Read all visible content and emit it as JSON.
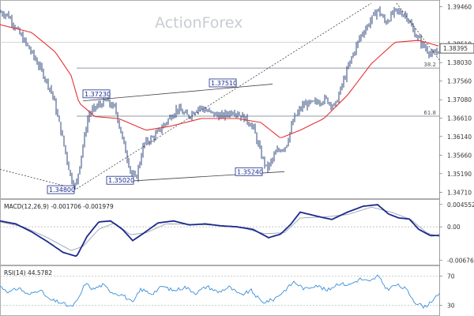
{
  "watermark": "ActionForex",
  "chart_data": [
    {
      "type": "candlestick",
      "panel": "price",
      "y_ticks": [
        "1.39460",
        "1.38510",
        "1.38030",
        "1.37560",
        "1.37080",
        "1.36610",
        "1.36140",
        "1.35660",
        "1.35190",
        "1.34710"
      ],
      "ylim": [
        1.3462,
        1.3955
      ],
      "current_price": "1.38395",
      "ma_line_color": "#e83030",
      "series_anchors": [
        {
          "x": 0,
          "p": 1.3932
        },
        {
          "x": 10,
          "p": 1.3925
        },
        {
          "x": 22,
          "p": 1.3885
        },
        {
          "x": 38,
          "p": 1.3835
        },
        {
          "x": 52,
          "p": 1.3785
        },
        {
          "x": 66,
          "p": 1.3725
        },
        {
          "x": 78,
          "p": 1.362
        },
        {
          "x": 90,
          "p": 1.3505
        },
        {
          "x": 96,
          "p": 1.3485
        },
        {
          "x": 104,
          "p": 1.358
        },
        {
          "x": 112,
          "p": 1.367
        },
        {
          "x": 122,
          "p": 1.369
        },
        {
          "x": 134,
          "p": 1.3705
        },
        {
          "x": 146,
          "p": 1.3685
        },
        {
          "x": 156,
          "p": 1.36
        },
        {
          "x": 166,
          "p": 1.352
        },
        {
          "x": 172,
          "p": 1.3505
        },
        {
          "x": 182,
          "p": 1.3595
        },
        {
          "x": 196,
          "p": 1.3615
        },
        {
          "x": 210,
          "p": 1.365
        },
        {
          "x": 224,
          "p": 1.3685
        },
        {
          "x": 238,
          "p": 1.3665
        },
        {
          "x": 252,
          "p": 1.369
        },
        {
          "x": 266,
          "p": 1.3675
        },
        {
          "x": 280,
          "p": 1.3665
        },
        {
          "x": 296,
          "p": 1.368
        },
        {
          "x": 310,
          "p": 1.366
        },
        {
          "x": 320,
          "p": 1.364
        },
        {
          "x": 330,
          "p": 1.357
        },
        {
          "x": 338,
          "p": 1.353
        },
        {
          "x": 350,
          "p": 1.3575
        },
        {
          "x": 362,
          "p": 1.359
        },
        {
          "x": 372,
          "p": 1.366
        },
        {
          "x": 384,
          "p": 1.3695
        },
        {
          "x": 398,
          "p": 1.37
        },
        {
          "x": 412,
          "p": 1.371
        },
        {
          "x": 424,
          "p": 1.369
        },
        {
          "x": 432,
          "p": 1.374
        },
        {
          "x": 444,
          "p": 1.381
        },
        {
          "x": 456,
          "p": 1.387
        },
        {
          "x": 466,
          "p": 1.39
        },
        {
          "x": 478,
          "p": 1.394
        },
        {
          "x": 488,
          "p": 1.3905
        },
        {
          "x": 500,
          "p": 1.3935
        },
        {
          "x": 514,
          "p": 1.3925
        },
        {
          "x": 524,
          "p": 1.388
        },
        {
          "x": 536,
          "p": 1.3845
        },
        {
          "x": 548,
          "p": 1.382
        },
        {
          "x": 556,
          "p": 1.384
        }
      ],
      "ma_anchors": [
        {
          "x": 0,
          "p": 1.39
        },
        {
          "x": 40,
          "p": 1.388
        },
        {
          "x": 70,
          "p": 1.383
        },
        {
          "x": 90,
          "p": 1.377
        },
        {
          "x": 100,
          "p": 1.37
        },
        {
          "x": 120,
          "p": 1.3665
        },
        {
          "x": 150,
          "p": 1.366
        },
        {
          "x": 185,
          "p": 1.363
        },
        {
          "x": 215,
          "p": 1.364
        },
        {
          "x": 255,
          "p": 1.366
        },
        {
          "x": 300,
          "p": 1.366
        },
        {
          "x": 330,
          "p": 1.365
        },
        {
          "x": 355,
          "p": 1.361
        },
        {
          "x": 380,
          "p": 1.363
        },
        {
          "x": 410,
          "p": 1.366
        },
        {
          "x": 440,
          "p": 1.372
        },
        {
          "x": 470,
          "p": 1.38
        },
        {
          "x": 500,
          "p": 1.3855
        },
        {
          "x": 530,
          "p": 1.386
        },
        {
          "x": 556,
          "p": 1.3845
        }
      ],
      "annotations": [
        {
          "label": "1.34800",
          "x": 60,
          "p": 1.3478
        },
        {
          "label": "1.37230",
          "x": 105,
          "p": 1.3723
        },
        {
          "label": "1.35020",
          "x": 135,
          "p": 1.3502
        },
        {
          "label": "1.37510",
          "x": 265,
          "p": 1.3751
        },
        {
          "label": "1.35240",
          "x": 298,
          "p": 1.3524
        }
      ],
      "fib_levels": [
        {
          "label": "38.2",
          "p": 1.3789
        },
        {
          "label": "61.8",
          "p": 1.3666
        }
      ],
      "trendlines": [
        {
          "x1": 0,
          "p1": 1.353,
          "x2": 97,
          "p2": 1.348,
          "style": "dashed"
        },
        {
          "x1": 97,
          "p1": 1.348,
          "x2": 470,
          "p2": 1.3955,
          "style": "dashed"
        },
        {
          "x1": 502,
          "p1": 1.3955,
          "x2": 556,
          "p2": 1.381,
          "style": "dashed"
        },
        {
          "x1": 105,
          "p1": 1.3705,
          "x2": 345,
          "p2": 1.3748,
          "style": "solid"
        },
        {
          "x1": 140,
          "p1": 1.3497,
          "x2": 360,
          "p2": 1.3524,
          "style": "solid"
        }
      ]
    },
    {
      "type": "line",
      "panel": "macd",
      "title": "MACD(12,26,9) -0.001706 -0.001979",
      "y_ticks": [
        "0.004552",
        "0.00",
        "-0.006764"
      ],
      "ylim": [
        -0.0072,
        0.005
      ],
      "macd_anchors": [
        {
          "x": 0,
          "v": 0.0012
        },
        {
          "x": 20,
          "v": 0.0006
        },
        {
          "x": 40,
          "v": -0.001
        },
        {
          "x": 60,
          "v": -0.003
        },
        {
          "x": 80,
          "v": -0.0052
        },
        {
          "x": 97,
          "v": -0.006
        },
        {
          "x": 110,
          "v": -0.002
        },
        {
          "x": 125,
          "v": 0.001
        },
        {
          "x": 140,
          "v": 0.0012
        },
        {
          "x": 155,
          "v": -0.0005
        },
        {
          "x": 168,
          "v": -0.0028
        },
        {
          "x": 180,
          "v": -0.0015
        },
        {
          "x": 200,
          "v": 0.0008
        },
        {
          "x": 220,
          "v": 0.0012
        },
        {
          "x": 240,
          "v": 0.0004
        },
        {
          "x": 260,
          "v": 0.0006
        },
        {
          "x": 280,
          "v": 0.0002
        },
        {
          "x": 300,
          "v": 0.0
        },
        {
          "x": 320,
          "v": -0.0005
        },
        {
          "x": 340,
          "v": -0.0022
        },
        {
          "x": 355,
          "v": -0.0015
        },
        {
          "x": 368,
          "v": 0.0005
        },
        {
          "x": 380,
          "v": 0.003
        },
        {
          "x": 400,
          "v": 0.0022
        },
        {
          "x": 420,
          "v": 0.0015
        },
        {
          "x": 440,
          "v": 0.003
        },
        {
          "x": 460,
          "v": 0.0042
        },
        {
          "x": 478,
          "v": 0.0045
        },
        {
          "x": 492,
          "v": 0.0026
        },
        {
          "x": 505,
          "v": 0.0018
        },
        {
          "x": 518,
          "v": 0.0016
        },
        {
          "x": 530,
          "v": -0.0005
        },
        {
          "x": 545,
          "v": -0.0018
        },
        {
          "x": 556,
          "v": -0.0017
        }
      ],
      "signal_anchors": [
        {
          "x": 0,
          "v": 0.001
        },
        {
          "x": 30,
          "v": 0.0
        },
        {
          "x": 60,
          "v": -0.0022
        },
        {
          "x": 90,
          "v": -0.0048
        },
        {
          "x": 105,
          "v": -0.004
        },
        {
          "x": 125,
          "v": -0.0005
        },
        {
          "x": 145,
          "v": 0.0008
        },
        {
          "x": 165,
          "v": -0.0016
        },
        {
          "x": 185,
          "v": -0.0012
        },
        {
          "x": 210,
          "v": 0.0006
        },
        {
          "x": 250,
          "v": 0.0005
        },
        {
          "x": 300,
          "v": 0.0001
        },
        {
          "x": 335,
          "v": -0.0014
        },
        {
          "x": 360,
          "v": -0.0012
        },
        {
          "x": 380,
          "v": 0.0018
        },
        {
          "x": 410,
          "v": 0.002
        },
        {
          "x": 440,
          "v": 0.0025
        },
        {
          "x": 470,
          "v": 0.004
        },
        {
          "x": 495,
          "v": 0.003
        },
        {
          "x": 520,
          "v": 0.0015
        },
        {
          "x": 540,
          "v": -0.0012
        },
        {
          "x": 556,
          "v": -0.002
        }
      ]
    },
    {
      "type": "line",
      "panel": "rsi",
      "title": "RSI(14) 44.5782",
      "y_ticks": [
        "70",
        "30"
      ],
      "ylim": [
        20,
        80
      ],
      "rsi_anchors": [
        {
          "x": 0,
          "v": 56
        },
        {
          "x": 12,
          "v": 48
        },
        {
          "x": 24,
          "v": 54
        },
        {
          "x": 36,
          "v": 44
        },
        {
          "x": 50,
          "v": 52
        },
        {
          "x": 62,
          "v": 38
        },
        {
          "x": 76,
          "v": 34
        },
        {
          "x": 90,
          "v": 28
        },
        {
          "x": 98,
          "v": 36
        },
        {
          "x": 108,
          "v": 60
        },
        {
          "x": 118,
          "v": 52
        },
        {
          "x": 130,
          "v": 58
        },
        {
          "x": 142,
          "v": 48
        },
        {
          "x": 156,
          "v": 44
        },
        {
          "x": 168,
          "v": 33
        },
        {
          "x": 178,
          "v": 52
        },
        {
          "x": 192,
          "v": 46
        },
        {
          "x": 206,
          "v": 56
        },
        {
          "x": 220,
          "v": 50
        },
        {
          "x": 234,
          "v": 55
        },
        {
          "x": 248,
          "v": 47
        },
        {
          "x": 262,
          "v": 56
        },
        {
          "x": 276,
          "v": 48
        },
        {
          "x": 290,
          "v": 55
        },
        {
          "x": 304,
          "v": 44
        },
        {
          "x": 318,
          "v": 50
        },
        {
          "x": 332,
          "v": 34
        },
        {
          "x": 346,
          "v": 38
        },
        {
          "x": 360,
          "v": 50
        },
        {
          "x": 372,
          "v": 62
        },
        {
          "x": 386,
          "v": 52
        },
        {
          "x": 400,
          "v": 58
        },
        {
          "x": 414,
          "v": 50
        },
        {
          "x": 428,
          "v": 60
        },
        {
          "x": 442,
          "v": 58
        },
        {
          "x": 456,
          "v": 66
        },
        {
          "x": 468,
          "v": 62
        },
        {
          "x": 478,
          "v": 70
        },
        {
          "x": 490,
          "v": 52
        },
        {
          "x": 502,
          "v": 58
        },
        {
          "x": 514,
          "v": 52
        },
        {
          "x": 526,
          "v": 34
        },
        {
          "x": 538,
          "v": 28
        },
        {
          "x": 548,
          "v": 38
        },
        {
          "x": 556,
          "v": 44
        }
      ]
    }
  ]
}
